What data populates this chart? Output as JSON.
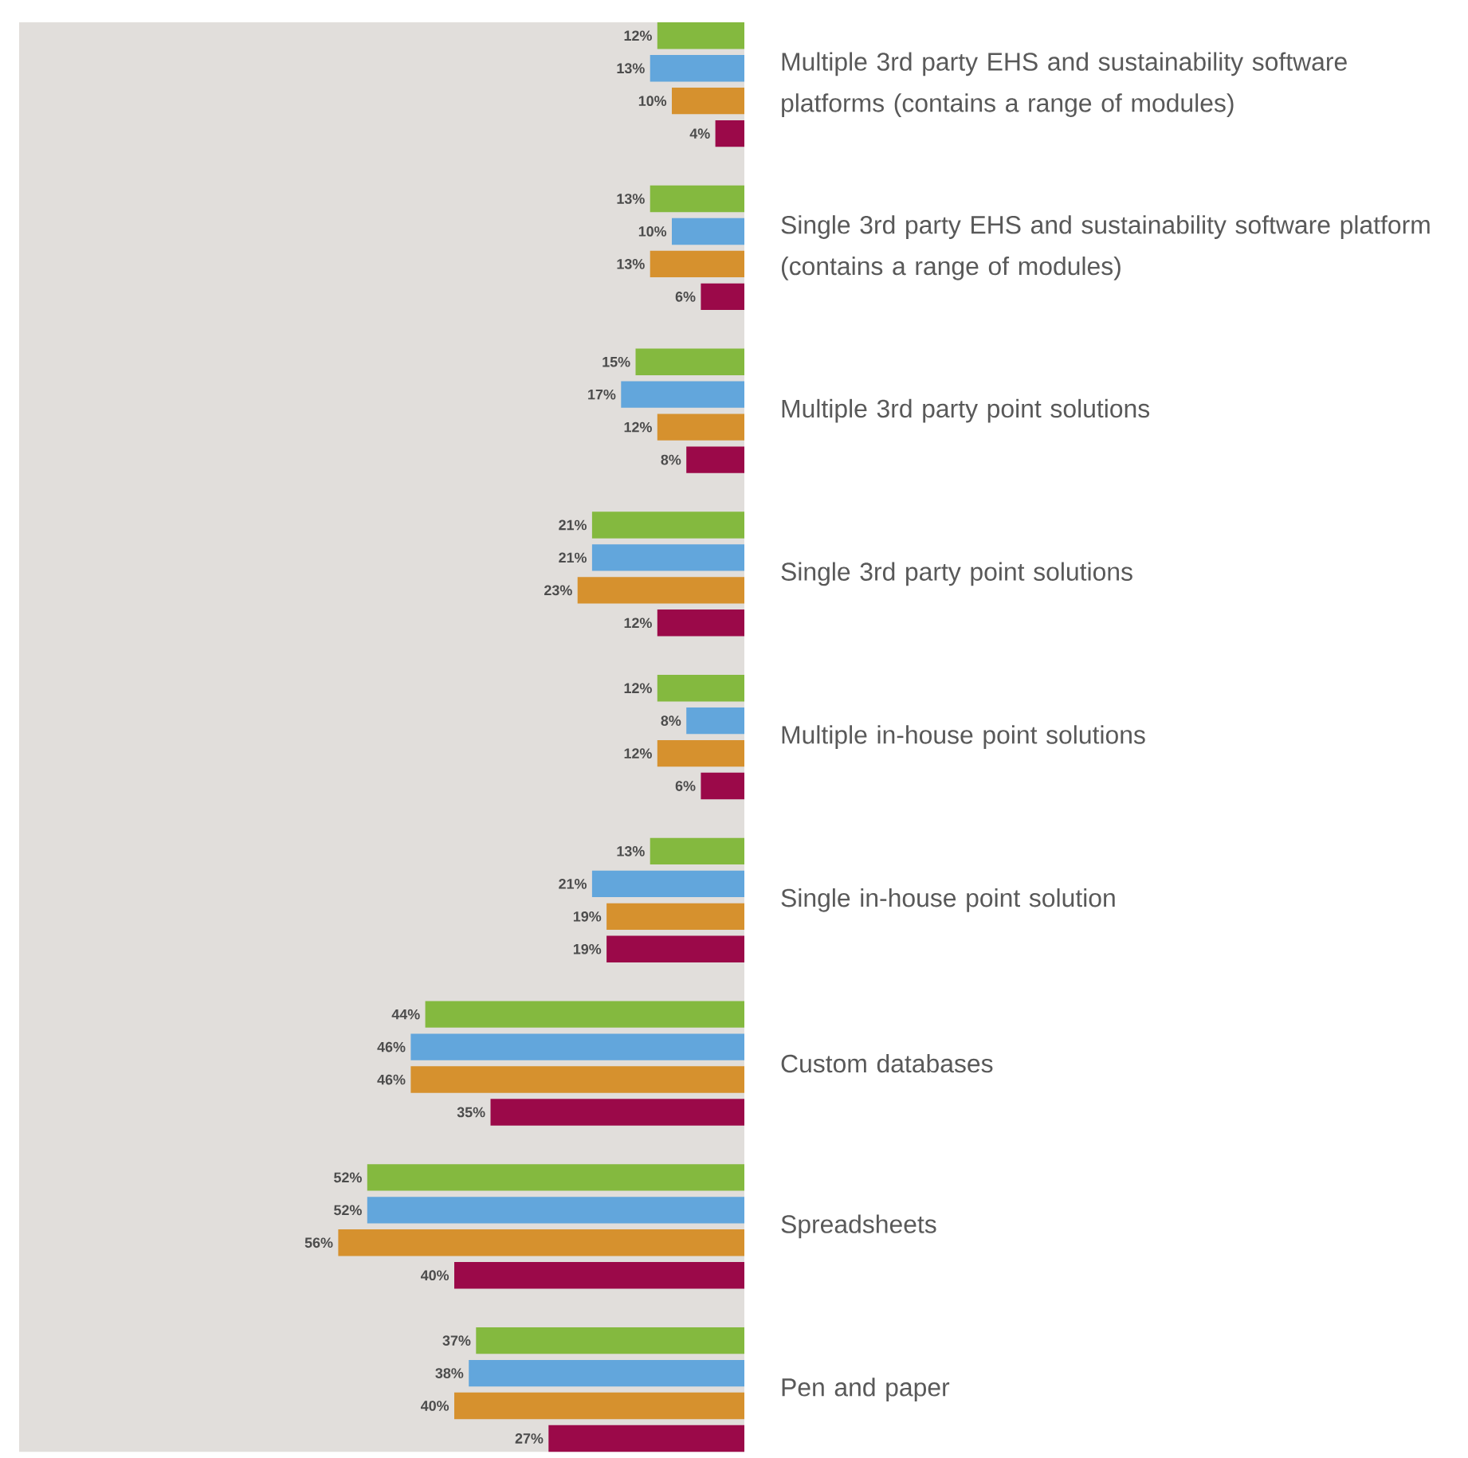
{
  "chart_data": {
    "type": "bar",
    "orientation": "horizontal",
    "categories": [
      "Multiple 3rd party EHS and sustainability software platforms (contains a range of modules)",
      "Single 3rd party EHS and sustainability software platform (contains a range of modules)",
      "Multiple 3rd party point solutions",
      "Single 3rd party point solutions",
      "Multiple in-house point solutions",
      "Single in-house point solution",
      "Custom databases",
      "Spreadsheets",
      "Pen and paper"
    ],
    "series": [
      {
        "color": "#84b93f",
        "values": [
          12,
          13,
          15,
          21,
          12,
          13,
          44,
          52,
          37
        ],
        "value_labels": [
          "12%",
          "13%",
          "15%",
          "21%",
          "12%",
          "13%",
          "44%",
          "52%",
          "37%"
        ]
      },
      {
        "color": "#62a6dc",
        "values": [
          13,
          10,
          17,
          21,
          8,
          21,
          46,
          52,
          38
        ],
        "value_labels": [
          "13%",
          "10%",
          "17%",
          "21%",
          "8%",
          "21%",
          "46%",
          "52%",
          "38%"
        ]
      },
      {
        "color": "#d6912e",
        "values": [
          10,
          13,
          12,
          23,
          12,
          19,
          46,
          56,
          40
        ],
        "value_labels": [
          "10%",
          "13%",
          "12%",
          "23%",
          "12%",
          "19%",
          "46%",
          "56%",
          "40%"
        ]
      },
      {
        "color": "#9b0949",
        "values": [
          4,
          6,
          8,
          12,
          6,
          19,
          35,
          40,
          27
        ],
        "value_labels": [
          "4%",
          "6%",
          "8%",
          "12%",
          "6%",
          "19%",
          "35%",
          "40%",
          "27%"
        ]
      }
    ],
    "xlim": [
      100,
      0
    ],
    "tick_labels": "y",
    "bands": [
      {
        "axis": "x",
        "from": 0,
        "to": 100,
        "color": "#e1dedb"
      }
    ]
  }
}
